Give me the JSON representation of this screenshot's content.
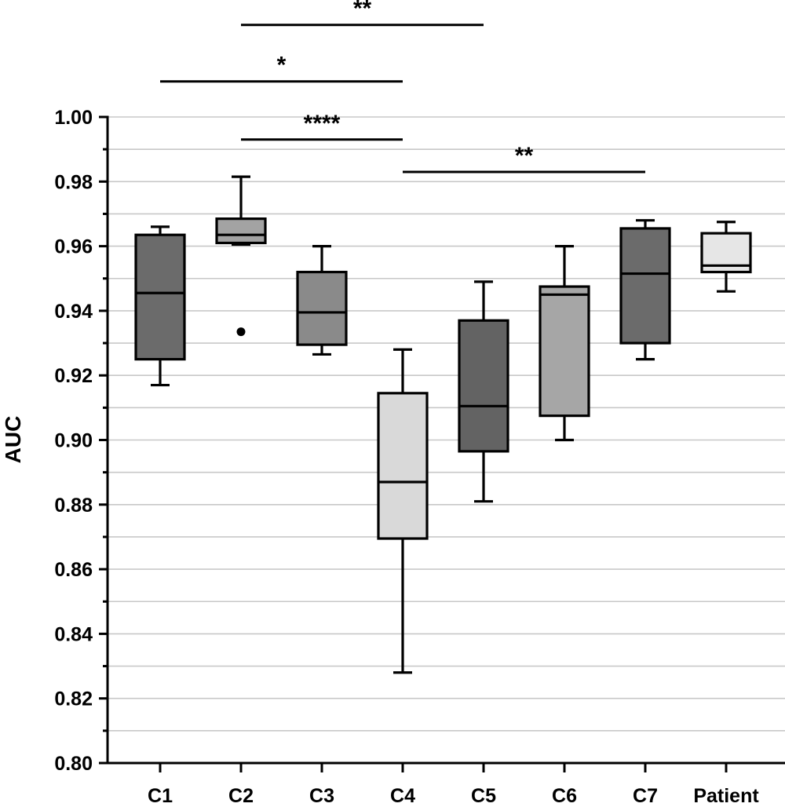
{
  "chart_data": {
    "type": "box",
    "title": "",
    "xlabel": "",
    "ylabel": "AUC",
    "ylim": [
      0.8,
      1.0
    ],
    "y_ticks": [
      "0.80",
      "0.82",
      "0.84",
      "0.86",
      "0.88",
      "0.90",
      "0.92",
      "0.94",
      "0.96",
      "0.98",
      "1.00"
    ],
    "grid": true,
    "categories": [
      "C1",
      "C2",
      "C3",
      "C4",
      "C5",
      "C6",
      "C7",
      "Patient"
    ],
    "boxes": [
      {
        "category": "C1",
        "min": 0.917,
        "q1": 0.925,
        "median": 0.9455,
        "q3": 0.9635,
        "max": 0.966,
        "fill": "#6b6b6b",
        "outliers": []
      },
      {
        "category": "C2",
        "min": 0.9605,
        "q1": 0.961,
        "median": 0.9635,
        "q3": 0.9685,
        "max": 0.9815,
        "fill": "#a3a3a3",
        "outliers": [
          0.9335
        ]
      },
      {
        "category": "C3",
        "min": 0.9265,
        "q1": 0.9295,
        "median": 0.9395,
        "q3": 0.952,
        "max": 0.96,
        "fill": "#8a8a8a",
        "outliers": []
      },
      {
        "category": "C4",
        "min": 0.828,
        "q1": 0.8695,
        "median": 0.887,
        "q3": 0.9145,
        "max": 0.928,
        "fill": "#d9d9d9",
        "outliers": []
      },
      {
        "category": "C5",
        "min": 0.881,
        "q1": 0.8965,
        "median": 0.9105,
        "q3": 0.937,
        "max": 0.949,
        "fill": "#636363",
        "outliers": []
      },
      {
        "category": "C6",
        "min": 0.9,
        "q1": 0.9075,
        "median": 0.945,
        "q3": 0.9475,
        "max": 0.96,
        "fill": "#a6a6a6",
        "outliers": []
      },
      {
        "category": "C7",
        "min": 0.925,
        "q1": 0.93,
        "median": 0.9515,
        "q3": 0.9655,
        "max": 0.968,
        "fill": "#6b6b6b",
        "outliers": []
      },
      {
        "category": "Patient",
        "min": 0.946,
        "q1": 0.952,
        "median": 0.954,
        "q3": 0.964,
        "max": 0.9675,
        "fill": "#e6e6e6",
        "outliers": []
      }
    ],
    "significance": [
      {
        "from": "C2",
        "to": "C5",
        "label": "**",
        "level": 1.0285
      },
      {
        "from": "C1",
        "to": "C4",
        "label": "*",
        "level": 1.011
      },
      {
        "from": "C2",
        "to": "C4",
        "label": "****",
        "level": 0.993
      },
      {
        "from": "C4",
        "to": "C7",
        "label": "**",
        "level": 0.983
      }
    ]
  }
}
